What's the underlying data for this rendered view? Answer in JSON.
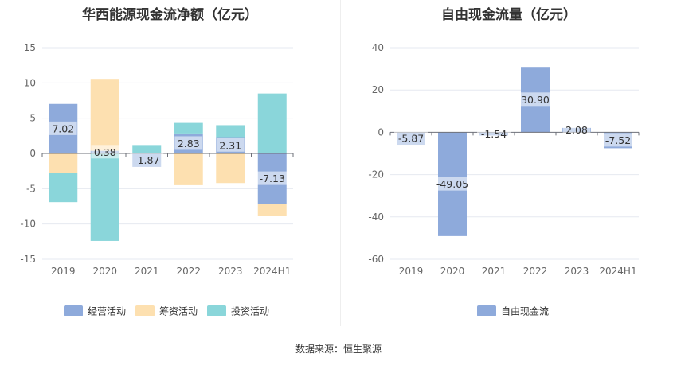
{
  "source": "数据来源：恒生聚源",
  "chart_data": [
    {
      "type": "bar",
      "stacked": true,
      "title": "华西能源现金流净额（亿元）",
      "categories": [
        "2019",
        "2020",
        "2021",
        "2022",
        "2023",
        "2024H1"
      ],
      "ylim": [
        -15,
        15
      ],
      "yticks": [
        15,
        10,
        5,
        0,
        -5,
        -10,
        -15
      ],
      "grid": true,
      "legend_position": "bottom",
      "series": [
        {
          "name": "经营活动",
          "color": "#8eaadb",
          "values": [
            7.02,
            0.38,
            -1.87,
            2.83,
            2.31,
            -7.13
          ]
        },
        {
          "name": "筹资活动",
          "color": "#fde0b0",
          "values": [
            -2.8,
            10.2,
            0.1,
            -4.5,
            -4.2,
            -1.7
          ]
        },
        {
          "name": "投资活动",
          "color": "#8ad6da",
          "values": [
            -4.1,
            -12.4,
            1.1,
            1.5,
            1.7,
            8.5
          ]
        }
      ],
      "data_labels": [
        "7.02",
        "0.38",
        "-1.87",
        "2.83",
        "2.31",
        "-7.13"
      ]
    },
    {
      "type": "bar",
      "title": "自由现金流量（亿元）",
      "categories": [
        "2019",
        "2020",
        "2021",
        "2022",
        "2023",
        "2024H1"
      ],
      "ylim": [
        -60,
        40
      ],
      "yticks": [
        40,
        20,
        0,
        -20,
        -40,
        -60
      ],
      "grid": true,
      "legend_position": "bottom",
      "series": [
        {
          "name": "自由现金流",
          "color": "#8eaadb",
          "values": [
            -5.87,
            -49.05,
            -1.54,
            30.9,
            2.08,
            -7.52
          ]
        }
      ],
      "data_labels": [
        "-5.87",
        "-49.05",
        "-1.54",
        "30.90",
        "2.08",
        "-7.52"
      ]
    }
  ]
}
